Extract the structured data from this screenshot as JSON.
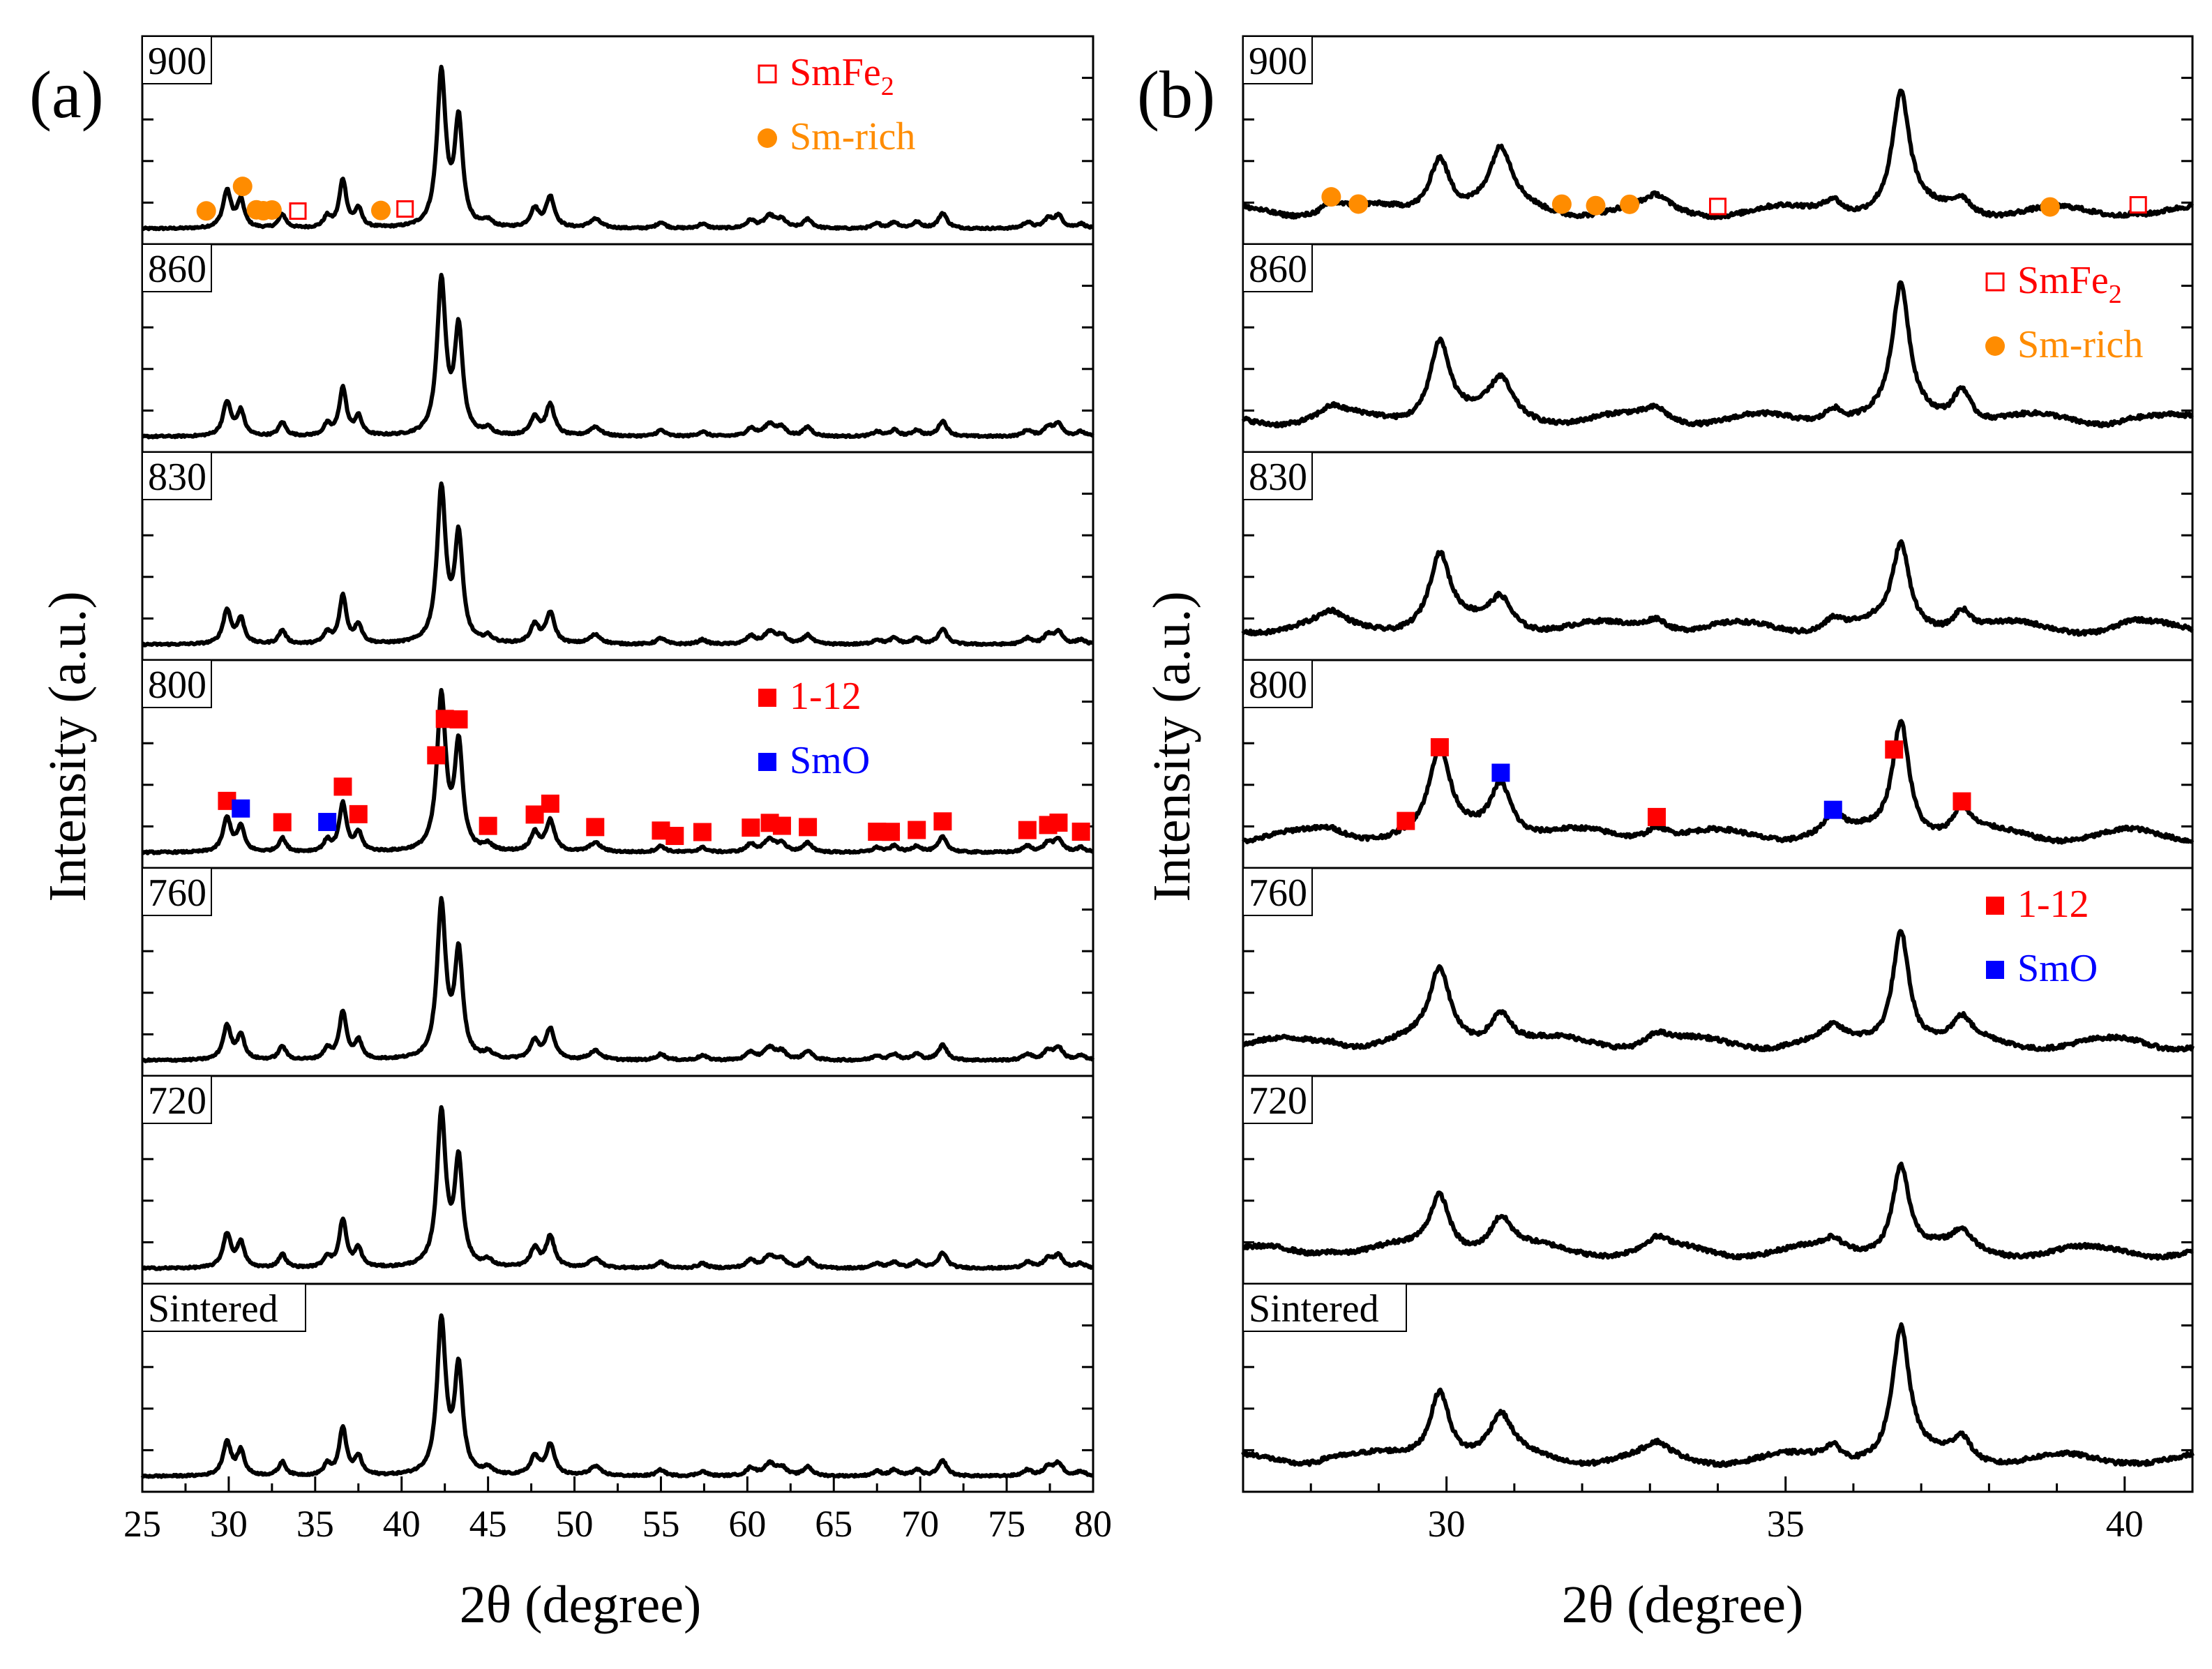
{
  "figure": {
    "y_axis_label": "Intensity (a.u.)",
    "x_axis_label": "2θ (degree)"
  },
  "colors": {
    "trace": "#000000",
    "phase_112": "#ff0000",
    "phase_SmO": "#0000ff",
    "phase_SmFe2": "#ff0000",
    "phase_Smrich": "#ff8c00"
  },
  "chart_data": [
    {
      "type": "line",
      "panel_label": "(a)",
      "title": "",
      "xlabel": "2θ (degree)",
      "ylabel": "Intensity (a.u.)",
      "xlim": [
        25,
        80
      ],
      "x_ticks": [
        "25",
        "30",
        "35",
        "40",
        "45",
        "50",
        "55",
        "60",
        "65",
        "70",
        "75",
        "80"
      ],
      "x_tick_values": [
        25,
        30,
        35,
        40,
        45,
        50,
        55,
        60,
        65,
        70,
        75,
        80
      ],
      "samples": [
        "900",
        "860",
        "830",
        "800",
        "760",
        "720",
        "Sintered"
      ],
      "peaks": [
        {
          "pos": 29.9,
          "h": 0.22,
          "w": 0.28
        },
        {
          "pos": 30.7,
          "h": 0.16,
          "w": 0.25
        },
        {
          "pos": 33.1,
          "h": 0.09,
          "w": 0.25
        },
        {
          "pos": 35.7,
          "h": 0.07,
          "w": 0.25
        },
        {
          "pos": 36.6,
          "h": 0.31,
          "w": 0.25
        },
        {
          "pos": 37.5,
          "h": 0.12,
          "w": 0.25
        },
        {
          "pos": 42.3,
          "h": 1.0,
          "w": 0.3
        },
        {
          "pos": 43.3,
          "h": 0.68,
          "w": 0.28
        },
        {
          "pos": 45.0,
          "h": 0.04,
          "w": 0.3
        },
        {
          "pos": 47.7,
          "h": 0.12,
          "w": 0.3
        },
        {
          "pos": 48.6,
          "h": 0.2,
          "w": 0.3
        },
        {
          "pos": 51.2,
          "h": 0.06,
          "w": 0.4
        },
        {
          "pos": 55.0,
          "h": 0.04,
          "w": 0.3
        },
        {
          "pos": 57.4,
          "h": 0.03,
          "w": 0.3
        },
        {
          "pos": 60.2,
          "h": 0.05,
          "w": 0.3
        },
        {
          "pos": 61.3,
          "h": 0.08,
          "w": 0.4
        },
        {
          "pos": 62.0,
          "h": 0.05,
          "w": 0.3
        },
        {
          "pos": 63.5,
          "h": 0.06,
          "w": 0.3
        },
        {
          "pos": 67.5,
          "h": 0.03,
          "w": 0.3
        },
        {
          "pos": 68.5,
          "h": 0.04,
          "w": 0.3
        },
        {
          "pos": 69.8,
          "h": 0.04,
          "w": 0.3
        },
        {
          "pos": 71.3,
          "h": 0.1,
          "w": 0.3
        },
        {
          "pos": 76.2,
          "h": 0.04,
          "w": 0.3
        },
        {
          "pos": 77.4,
          "h": 0.06,
          "w": 0.3
        },
        {
          "pos": 78.0,
          "h": 0.08,
          "w": 0.3
        },
        {
          "pos": 79.3,
          "h": 0.03,
          "w": 0.3
        }
      ],
      "legends": [
        {
          "sample": "900",
          "entries": [
            {
              "label": "SmFe",
              "sub": "2",
              "marker": "open-square",
              "color": "#ff0000"
            },
            {
              "label": "Sm-rich",
              "marker": "circle",
              "color": "#ff8c00"
            }
          ]
        },
        {
          "sample": "800",
          "entries": [
            {
              "label": "1-12",
              "marker": "square",
              "color": "#ff0000"
            },
            {
              "label": "SmO",
              "marker": "square",
              "color": "#0000ff"
            }
          ]
        }
      ],
      "markers": [
        {
          "sample": "900",
          "x": [
            28.7,
            30.8,
            31.6,
            32.0,
            32.5,
            38.8
          ],
          "marker": "circle",
          "color": "#ff8c00"
        },
        {
          "sample": "900",
          "x": [
            34.0,
            40.2
          ],
          "marker": "open-square",
          "color": "#ff0000"
        },
        {
          "sample": "800",
          "x": [
            29.9,
            36.6,
            42.0,
            42.5,
            43.3,
            33.1,
            37.5,
            45.0,
            47.7,
            48.6,
            51.2,
            55.0,
            55.8,
            57.4,
            60.2,
            61.3,
            62.0,
            63.5,
            67.5,
            68.3,
            69.8,
            71.3,
            76.2,
            77.4,
            78.0,
            79.3
          ],
          "marker": "square",
          "color": "#ff0000"
        },
        {
          "sample": "800",
          "x": [
            30.7,
            35.7
          ],
          "marker": "square",
          "color": "#0000ff"
        }
      ]
    },
    {
      "type": "line",
      "panel_label": "(b)",
      "title": "",
      "xlabel": "2θ (degree)",
      "ylabel": "Intensity (a.u.)",
      "xlim": [
        27,
        41
      ],
      "x_ticks": [
        "30",
        "35",
        "40"
      ],
      "x_tick_values": [
        30,
        35,
        40
      ],
      "samples": [
        "900",
        "860",
        "830",
        "800",
        "760",
        "720",
        "Sintered"
      ],
      "peaks": [
        {
          "pos": 28.3,
          "h": 0.12,
          "w": 0.2
        },
        {
          "pos": 29.9,
          "h": 0.7,
          "w": 0.18
        },
        {
          "pos": 30.8,
          "h": 0.45,
          "w": 0.2
        },
        {
          "pos": 33.1,
          "h": 0.2,
          "w": 0.2
        },
        {
          "pos": 35.7,
          "h": 0.25,
          "w": 0.16
        },
        {
          "pos": 36.7,
          "h": 1.0,
          "w": 0.15
        },
        {
          "pos": 37.6,
          "h": 0.28,
          "w": 0.16
        },
        {
          "pos": 40.1,
          "h": 0.05,
          "w": 0.2
        }
      ],
      "legends": [
        {
          "sample": "860",
          "entries": [
            {
              "label": "SmFe",
              "sub": "2",
              "marker": "open-square",
              "color": "#ff0000"
            },
            {
              "label": "Sm-rich",
              "marker": "circle",
              "color": "#ff8c00"
            }
          ]
        },
        {
          "sample": "760",
          "entries": [
            {
              "label": "1-12",
              "marker": "square",
              "color": "#ff0000"
            },
            {
              "label": "SmO",
              "marker": "square",
              "color": "#0000ff"
            }
          ]
        }
      ],
      "markers": [
        {
          "sample": "900",
          "x": [
            28.3,
            28.7,
            31.7,
            32.2,
            32.7,
            38.9
          ],
          "marker": "circle",
          "color": "#ff8c00"
        },
        {
          "sample": "900",
          "x": [
            34.0,
            40.2
          ],
          "marker": "open-square",
          "color": "#ff0000"
        },
        {
          "sample": "800",
          "x": [
            29.4,
            29.9,
            33.1,
            36.6,
            37.6
          ],
          "marker": "square",
          "color": "#ff0000"
        },
        {
          "sample": "800",
          "x": [
            30.8,
            35.7
          ],
          "marker": "square",
          "color": "#0000ff"
        }
      ]
    }
  ]
}
